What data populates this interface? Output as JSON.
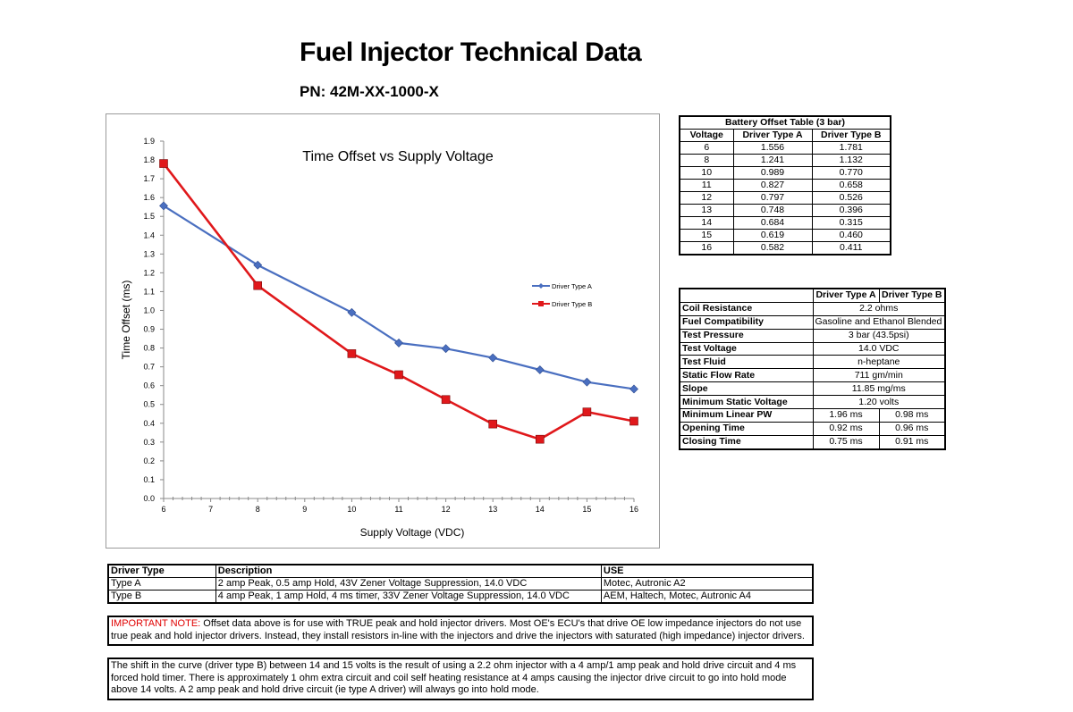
{
  "header": {
    "title": "Fuel Injector Technical Data",
    "pn": "PN: 42M-XX-1000-X"
  },
  "chart_data": {
    "type": "line",
    "title": "Time Offset vs Supply Voltage",
    "xlabel": "Supply Voltage (VDC)",
    "ylabel": "Time Offset (ms)",
    "x_ticks": [
      6,
      7,
      8,
      9,
      10,
      11,
      12,
      13,
      14,
      15,
      16
    ],
    "y_ticks": [
      "0.0",
      "0.1",
      "0.2",
      "0.3",
      "0.4",
      "0.5",
      "0.6",
      "0.7",
      "0.8",
      "0.9",
      "1.0",
      "1.1",
      "1.2",
      "1.3",
      "1.4",
      "1.5",
      "1.6",
      "1.7",
      "1.8",
      "1.9"
    ],
    "xlim": [
      6,
      16
    ],
    "ylim": [
      0,
      1.9
    ],
    "grid": false,
    "legend": "right",
    "x": [
      6,
      8,
      10,
      11,
      12,
      13,
      14,
      15,
      16
    ],
    "series": [
      {
        "name": "Driver Type A",
        "color": "#4a6fc0",
        "marker": "diamond",
        "values": [
          1.556,
          1.241,
          0.989,
          0.827,
          0.797,
          0.748,
          0.684,
          0.619,
          0.582
        ]
      },
      {
        "name": "Driver Type B",
        "color": "#e0181b",
        "marker": "square",
        "values": [
          1.781,
          1.132,
          0.77,
          0.658,
          0.526,
          0.396,
          0.315,
          0.46,
          0.411
        ]
      }
    ]
  },
  "battery_table": {
    "title": "Battery Offset Table (3 bar)",
    "headers": [
      "Voltage",
      "Driver Type A",
      "Driver Type B"
    ],
    "rows": [
      [
        "6",
        "1.556",
        "1.781"
      ],
      [
        "8",
        "1.241",
        "1.132"
      ],
      [
        "10",
        "0.989",
        "0.770"
      ],
      [
        "11",
        "0.827",
        "0.658"
      ],
      [
        "12",
        "0.797",
        "0.526"
      ],
      [
        "13",
        "0.748",
        "0.396"
      ],
      [
        "14",
        "0.684",
        "0.315"
      ],
      [
        "15",
        "0.619",
        "0.460"
      ],
      [
        "16",
        "0.582",
        "0.411"
      ]
    ]
  },
  "specs_table": {
    "headers": [
      "Driver Type A",
      "Driver Type B"
    ],
    "shared_rows": [
      {
        "label": "Coil Resistance",
        "value": "2.2 ohms"
      },
      {
        "label": "Fuel Compatibility",
        "value": "Gasoline and Ethanol Blended Fuels"
      },
      {
        "label": "Test Pressure",
        "value": "3 bar (43.5psi)"
      },
      {
        "label": "Test Voltage",
        "value": "14.0 VDC"
      },
      {
        "label": "Test Fluid",
        "value": "n-heptane"
      },
      {
        "label": "Static Flow Rate",
        "value": "711 gm/min"
      },
      {
        "label": "Slope",
        "value": "11.85 mg/ms"
      },
      {
        "label": "Minimum Static Voltage",
        "value": "1.20 volts"
      }
    ],
    "split_rows": [
      {
        "label": "Minimum Linear PW",
        "a": "1.96 ms",
        "b": "0.98 ms"
      },
      {
        "label": "Opening Time",
        "a": "0.92 ms",
        "b": "0.96 ms"
      },
      {
        "label": "Closing Time",
        "a": "0.75 ms",
        "b": "0.91 ms"
      }
    ]
  },
  "driver_table": {
    "headers": [
      "Driver Type",
      "Description",
      "USE"
    ],
    "rows": [
      [
        "Type A",
        "2 amp Peak, 0.5 amp Hold, 43V Zener Voltage Suppression, 14.0 VDC",
        "Motec, Autronic A2"
      ],
      [
        "Type B",
        "4 amp Peak, 1 amp Hold, 4 ms timer, 33V Zener Voltage Suppression, 14.0 VDC",
        "AEM, Haltech, Motec, Autronic A4"
      ]
    ]
  },
  "notes": {
    "important_label": "IMPORTANT NOTE:",
    "important_text": " Offset data above is for use with TRUE peak and hold injector drivers.  Most OE's ECU's that drive OE low impedance injectors do not use true peak and hold injector drivers.  Instead, they install resistors in-line with the injectors and drive the injectors with saturated (high impedance) injector drivers.",
    "shift_text": "The shift in the curve (driver type B) between 14 and 15 volts is the result of using a 2.2 ohm injector with a 4 amp/1 amp peak and hold drive circuit and 4 ms forced hold timer. There is approximately 1 ohm extra circuit and coil self heating resistance at 4 amps causing the injector drive circuit to go into hold mode above 14 volts. A 2 amp peak and hold drive circuit (ie type A driver) will always go into hold mode."
  }
}
